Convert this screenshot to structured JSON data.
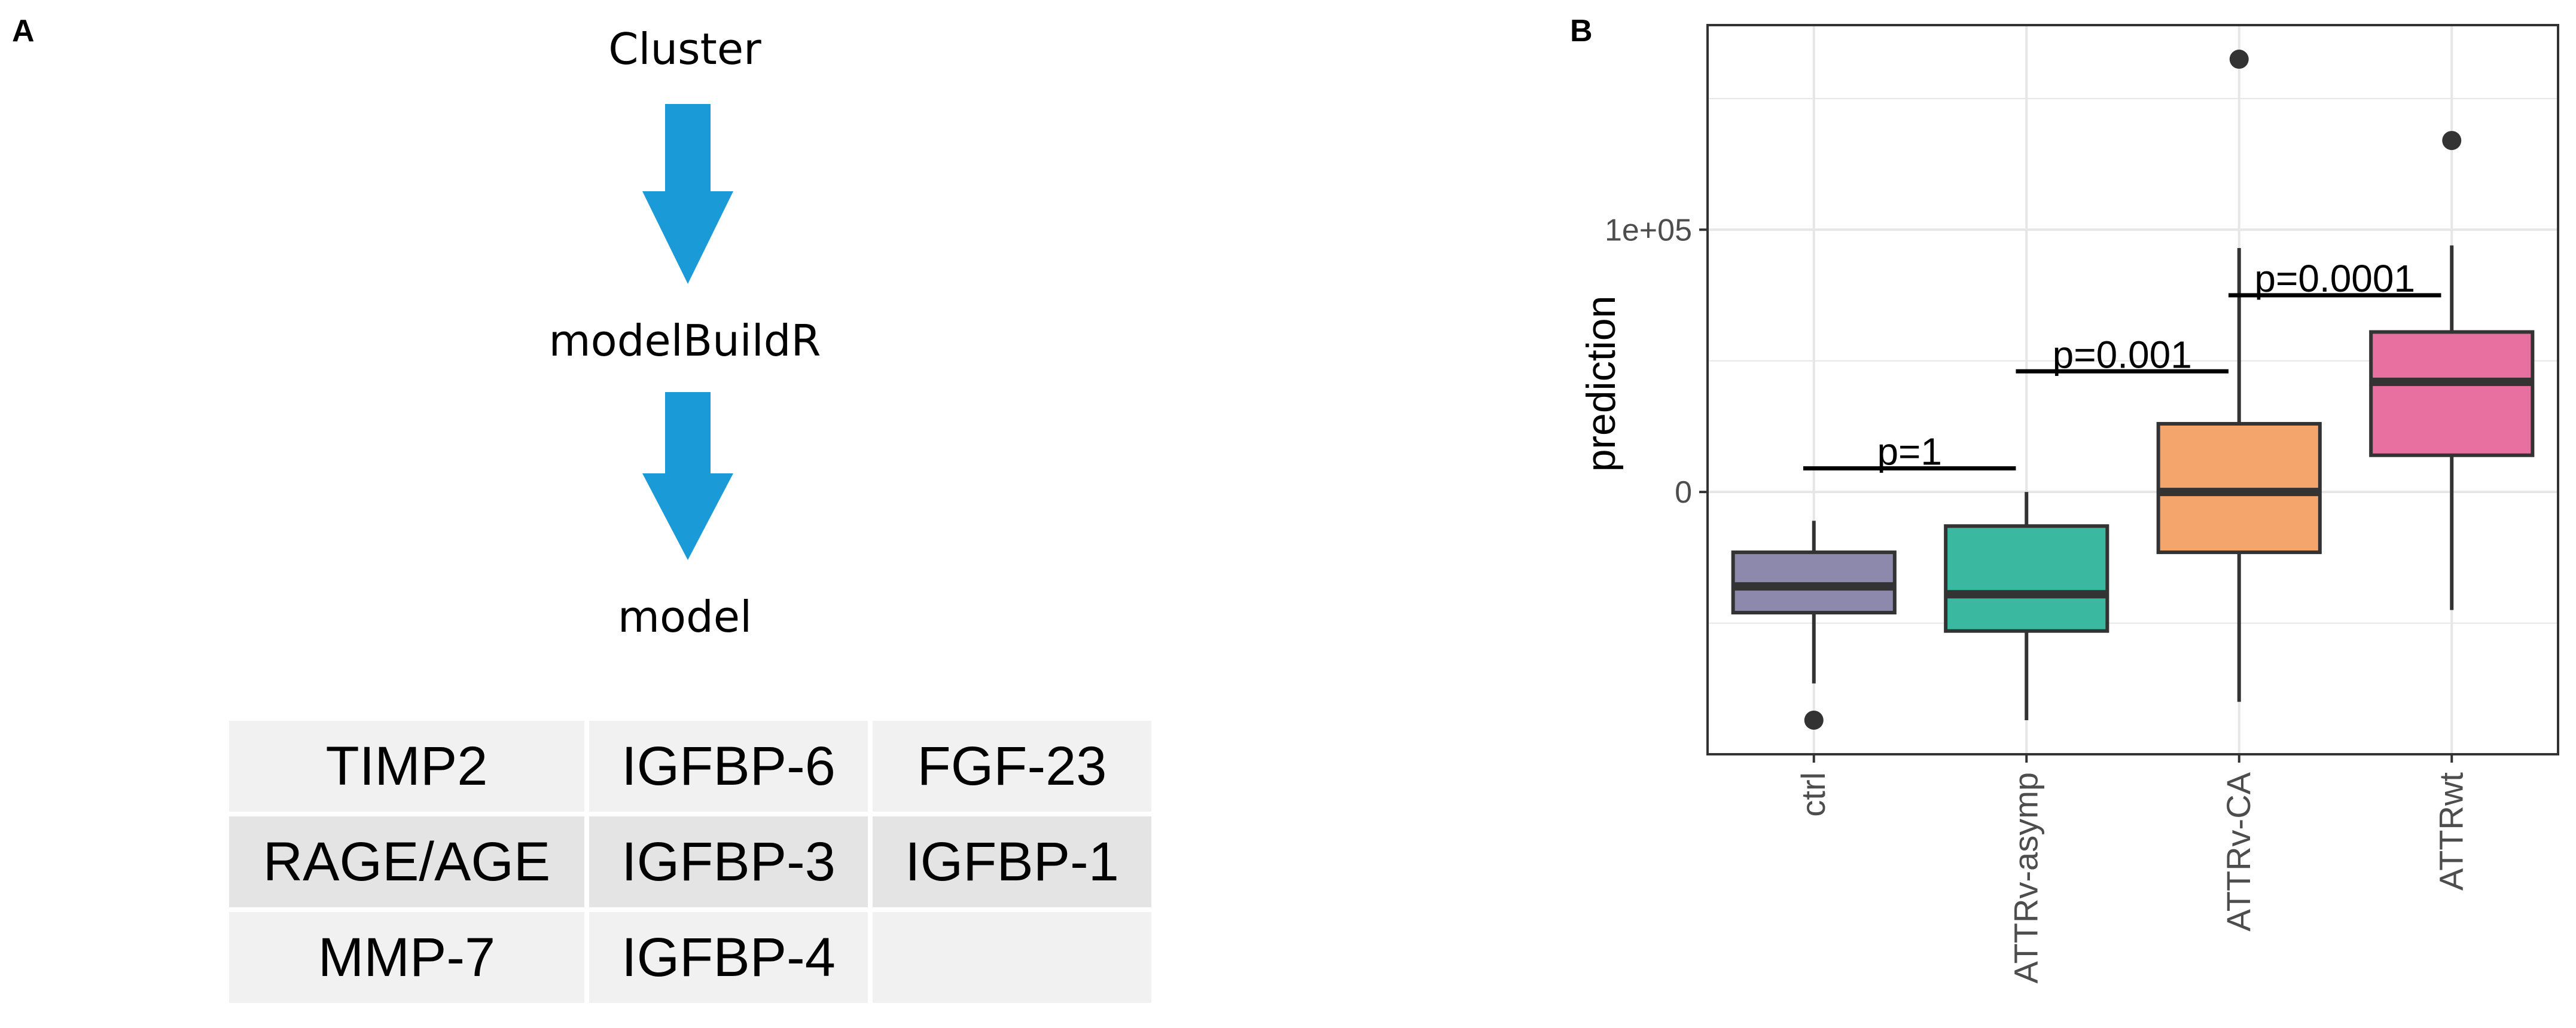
{
  "panels": {
    "a_label": "A",
    "b_label": "B"
  },
  "flow": {
    "steps": [
      "Cluster",
      "modelBuildR",
      "model"
    ],
    "arrow_color": "#1b9ad8"
  },
  "marker_table": {
    "rows": [
      [
        "TIMP2",
        "IGFBP-6",
        "FGF-23"
      ],
      [
        "RAGE/AGE",
        "IGFBP-3",
        "IGFBP-1"
      ],
      [
        "MMP-7",
        "IGFBP-4",
        ""
      ]
    ]
  },
  "chart_data": {
    "type": "box",
    "title": "",
    "xlabel": "",
    "ylabel": "prediction",
    "ylim": [
      -100000,
      178000
    ],
    "yticks": [
      {
        "value": 0,
        "label": "0"
      },
      {
        "value": 100000,
        "label": "1e+05"
      }
    ],
    "grid": true,
    "categories": [
      "ctrl",
      "ATTRv-asymp",
      "ATTRv-CA",
      "ATTRwt"
    ],
    "colors": [
      "#8c89ad",
      "#3ab8a0",
      "#f4a56b",
      "#e870a0"
    ],
    "boxes": [
      {
        "whisker_low": -73000,
        "q1": -46000,
        "median": -36000,
        "q3": -23000,
        "whisker_high": -11000,
        "outliers": [
          -87000
        ]
      },
      {
        "whisker_low": -87000,
        "q1": -53000,
        "median": -39000,
        "q3": -13000,
        "whisker_high": 0,
        "outliers": []
      },
      {
        "whisker_low": -80000,
        "q1": -23000,
        "median": 0,
        "q3": 26000,
        "whisker_high": 93000,
        "outliers": [
          165000
        ]
      },
      {
        "whisker_low": -45000,
        "q1": 14000,
        "median": 42000,
        "q3": 61000,
        "whisker_high": 94000,
        "outliers": [
          134000
        ]
      }
    ],
    "annotations": [
      {
        "text": "p=1",
        "from": 0,
        "to": 1,
        "y": 9000
      },
      {
        "text": "p=0.001",
        "from": 1,
        "to": 2,
        "y": 46000
      },
      {
        "text": "p=0.0001",
        "from": 2,
        "to": 3,
        "y": 75000
      }
    ]
  }
}
